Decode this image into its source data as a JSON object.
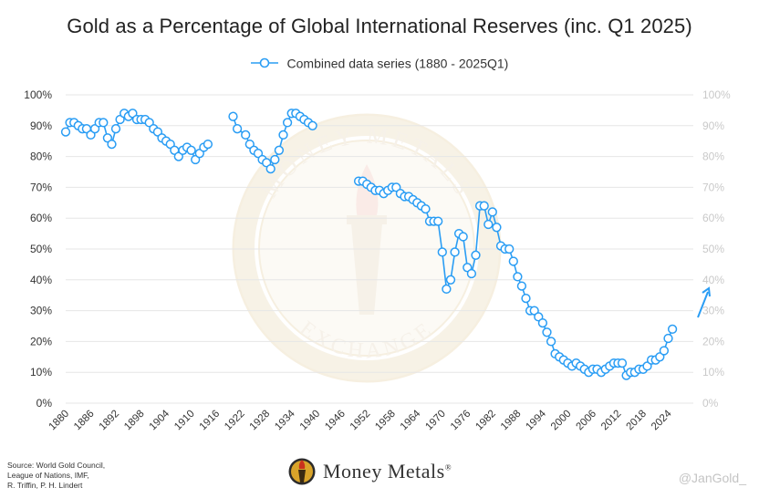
{
  "title": "Gold as a Percentage of Global International Reserves (inc. Q1 2025)",
  "legend": {
    "label": "Combined data series (1880 - 2025Q1)"
  },
  "colors": {
    "series": "#2a9df4",
    "grid": "#e6e6e6",
    "right_axis": "#c9c9c9",
    "watermark": "#f3ead8"
  },
  "source": "Source: World Gold Council,\nLeague of Nations, IMF,\nR. Triffin, P. H. Lindert",
  "brand": {
    "name": "Money Metals",
    "mark": "®"
  },
  "watermark": {
    "top_text": "MONEY METALS",
    "bottom_text": "EXCHANGE"
  },
  "handle": "@JanGold_",
  "chart_data": {
    "type": "line",
    "title": "Gold as a Percentage of Global International Reserves (inc. Q1 2025)",
    "xlabel": "",
    "ylabel": "",
    "xlim": [
      1880,
      2030
    ],
    "ylim": [
      0,
      100
    ],
    "x_ticks": [
      1880,
      1886,
      1892,
      1898,
      1904,
      1910,
      1916,
      1922,
      1928,
      1934,
      1940,
      1946,
      1952,
      1958,
      1964,
      1970,
      1976,
      1982,
      1988,
      1994,
      2000,
      2006,
      2012,
      2018,
      2024
    ],
    "y_ticks": [
      "0%",
      "10%",
      "20%",
      "30%",
      "40%",
      "50%",
      "60%",
      "70%",
      "80%",
      "90%",
      "100%"
    ],
    "y_ticks_right": [
      "0%",
      "10%",
      "20%",
      "30%",
      "40%",
      "50%",
      "60%",
      "70%",
      "80%",
      "90%",
      "100%"
    ],
    "annotation": "upward arrow after 2025",
    "series": [
      {
        "name": "Combined data series (1880 - 2025Q1)",
        "segments": [
          [
            [
              1880,
              88
            ],
            [
              1881,
              91
            ],
            [
              1882,
              91
            ],
            [
              1883,
              90
            ],
            [
              1884,
              89
            ],
            [
              1885,
              89
            ],
            [
              1886,
              87
            ],
            [
              1887,
              89
            ],
            [
              1888,
              91
            ],
            [
              1889,
              91
            ],
            [
              1890,
              86
            ],
            [
              1891,
              84
            ],
            [
              1892,
              89
            ],
            [
              1893,
              92
            ],
            [
              1894,
              94
            ],
            [
              1895,
              93
            ],
            [
              1896,
              94
            ],
            [
              1897,
              92
            ],
            [
              1898,
              92
            ],
            [
              1899,
              92
            ],
            [
              1900,
              91
            ],
            [
              1901,
              89
            ],
            [
              1902,
              88
            ],
            [
              1903,
              86
            ],
            [
              1904,
              85
            ],
            [
              1905,
              84
            ],
            [
              1906,
              82
            ],
            [
              1907,
              80
            ],
            [
              1908,
              82
            ],
            [
              1909,
              83
            ],
            [
              1910,
              82
            ],
            [
              1911,
              79
            ],
            [
              1912,
              81
            ],
            [
              1913,
              83
            ],
            [
              1914,
              84
            ]
          ],
          [
            [
              1920,
              93
            ],
            [
              1921,
              89
            ],
            [
              1923,
              87
            ],
            [
              1924,
              84
            ],
            [
              1925,
              82
            ],
            [
              1926,
              81
            ],
            [
              1927,
              79
            ],
            [
              1928,
              78
            ],
            [
              1929,
              76
            ],
            [
              1930,
              79
            ],
            [
              1931,
              82
            ],
            [
              1932,
              87
            ],
            [
              1933,
              91
            ],
            [
              1934,
              94
            ],
            [
              1935,
              94
            ],
            [
              1936,
              93
            ],
            [
              1937,
              92
            ],
            [
              1938,
              91
            ],
            [
              1939,
              90
            ]
          ],
          [
            [
              1950,
              72
            ],
            [
              1951,
              72
            ],
            [
              1952,
              71
            ],
            [
              1953,
              70
            ],
            [
              1954,
              69
            ],
            [
              1955,
              69
            ],
            [
              1956,
              68
            ],
            [
              1957,
              69
            ],
            [
              1958,
              70
            ],
            [
              1959,
              70
            ],
            [
              1960,
              68
            ],
            [
              1961,
              67
            ],
            [
              1962,
              67
            ],
            [
              1963,
              66
            ],
            [
              1964,
              65
            ],
            [
              1965,
              64
            ],
            [
              1966,
              63
            ],
            [
              1967,
              59
            ],
            [
              1968,
              59
            ],
            [
              1969,
              59
            ],
            [
              1970,
              49
            ],
            [
              1971,
              37
            ],
            [
              1972,
              40
            ],
            [
              1973,
              49
            ],
            [
              1974,
              55
            ],
            [
              1975,
              54
            ],
            [
              1976,
              44
            ],
            [
              1977,
              42
            ],
            [
              1978,
              48
            ],
            [
              1979,
              64
            ],
            [
              1980,
              64
            ],
            [
              1981,
              58
            ],
            [
              1982,
              62
            ],
            [
              1983,
              57
            ],
            [
              1984,
              51
            ],
            [
              1985,
              50
            ],
            [
              1986,
              50
            ],
            [
              1987,
              46
            ],
            [
              1988,
              41
            ],
            [
              1989,
              38
            ],
            [
              1990,
              34
            ],
            [
              1991,
              30
            ],
            [
              1992,
              30
            ],
            [
              1993,
              28
            ],
            [
              1994,
              26
            ],
            [
              1995,
              23
            ],
            [
              1996,
              20
            ],
            [
              1997,
              16
            ],
            [
              1998,
              15
            ],
            [
              1999,
              14
            ],
            [
              2000,
              13
            ],
            [
              2001,
              12
            ],
            [
              2002,
              13
            ],
            [
              2003,
              12
            ],
            [
              2004,
              11
            ],
            [
              2005,
              10
            ],
            [
              2006,
              11
            ],
            [
              2007,
              11
            ],
            [
              2008,
              10
            ],
            [
              2009,
              11
            ],
            [
              2010,
              12
            ],
            [
              2011,
              13
            ],
            [
              2012,
              13
            ],
            [
              2013,
              13
            ],
            [
              2014,
              9
            ],
            [
              2015,
              10
            ],
            [
              2016,
              10
            ],
            [
              2017,
              11
            ],
            [
              2018,
              11
            ],
            [
              2019,
              12
            ],
            [
              2020,
              14
            ],
            [
              2021,
              14
            ],
            [
              2022,
              15
            ],
            [
              2023,
              17
            ],
            [
              2024,
              21
            ],
            [
              2025,
              24
            ]
          ]
        ]
      }
    ]
  }
}
